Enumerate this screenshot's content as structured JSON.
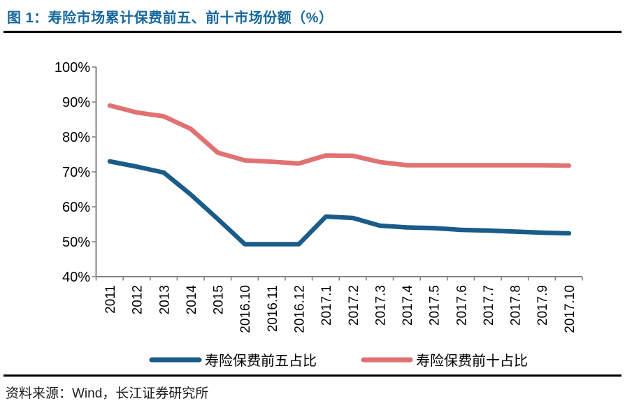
{
  "figure": {
    "title": "图 1：寿险市场累计保费前五、前十市场份额（%）",
    "source": "资料来源：Wind，长江证券研究所"
  },
  "chart_data": {
    "type": "line",
    "title": "寿险市场累计保费前五、前十市场份额（%）",
    "xlabel": "",
    "ylabel": "",
    "categories": [
      "2011",
      "2012",
      "2013",
      "2014",
      "2015",
      "2016.10",
      "2016.11",
      "2016.12",
      "2017.1",
      "2017.2",
      "2017.3",
      "2017.4",
      "2017.5",
      "2017.6",
      "2017.7",
      "2017.8",
      "2017.9",
      "2017.10"
    ],
    "series": [
      {
        "name": "寿险保费前五占比",
        "color": "#1a5c89",
        "values": [
          73.0,
          71.5,
          69.8,
          63.5,
          56.5,
          49.3,
          49.3,
          49.3,
          57.2,
          56.8,
          54.6,
          54.1,
          53.9,
          53.4,
          53.2,
          52.9,
          52.6,
          52.4
        ]
      },
      {
        "name": "寿险保费前十占比",
        "color": "#e17172",
        "values": [
          89.0,
          87.0,
          85.9,
          82.3,
          75.5,
          73.3,
          72.9,
          72.4,
          74.7,
          74.6,
          72.8,
          71.9,
          71.9,
          71.9,
          71.9,
          71.9,
          71.9,
          71.8
        ]
      }
    ],
    "ylim": [
      40,
      100
    ],
    "y_tick_labels": [
      "100%",
      "90%",
      "80%",
      "70%",
      "60%",
      "50%",
      "40%"
    ],
    "y_tick_values": [
      100,
      90,
      80,
      70,
      60,
      50,
      40
    ],
    "grid": false,
    "legend_position": "bottom",
    "x_labels_rotated_degrees": 90
  },
  "style_colors": {
    "title_color": "#17689c",
    "axis_color": "#848484",
    "label_color": "#000000",
    "rule_color": "#000000"
  }
}
